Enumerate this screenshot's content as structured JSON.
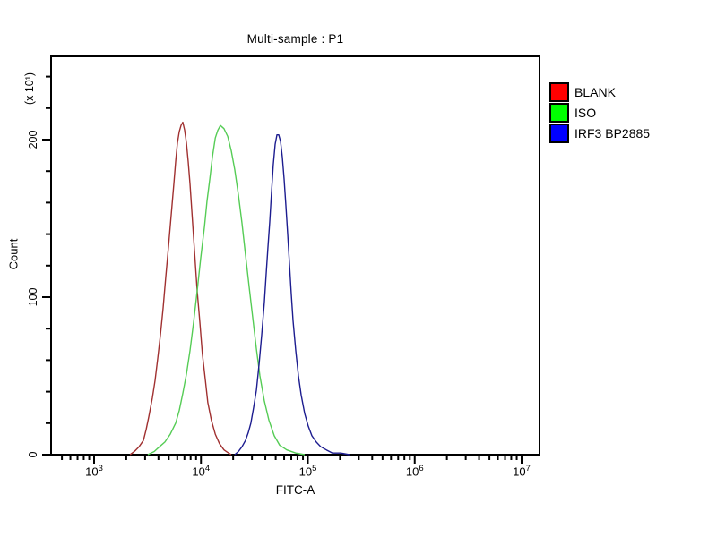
{
  "title": "Multi-sample : P1",
  "legend": {
    "items": [
      {
        "label": "BLANK",
        "color": "#ff0000"
      },
      {
        "label": "ISO",
        "color": "#00ff00"
      },
      {
        "label": "IRF3 BP2885",
        "color": "#0000ff"
      }
    ]
  },
  "axes": {
    "x": {
      "label": "FITC-A",
      "scale": "log",
      "base": "10",
      "tick_exponents": [
        3,
        4,
        5,
        6,
        7
      ]
    },
    "y": {
      "label": "Count",
      "multiplier_label": "(x 10¹)",
      "tick_values": [
        0,
        100,
        200
      ],
      "minor_step": 20,
      "minor_max": 240
    }
  },
  "chart_data": {
    "type": "line",
    "title": "Multi-sample : P1",
    "xlabel": "FITC-A",
    "ylabel": "Count",
    "y_unit": "x 10^1",
    "x_scale": "log",
    "xlim": [
      400,
      15000000
    ],
    "ylim": [
      0,
      253
    ],
    "grid": false,
    "legend_position": "right-outside",
    "series": [
      {
        "name": "BLANK",
        "color": "#a03030",
        "legend_color": "#ff0000",
        "points": [
          [
            2170,
            0
          ],
          [
            2380,
            2
          ],
          [
            2630,
            5
          ],
          [
            2890,
            9
          ],
          [
            3070,
            16
          ],
          [
            3250,
            24
          ],
          [
            3510,
            36
          ],
          [
            3720,
            47
          ],
          [
            3940,
            61
          ],
          [
            4170,
            76
          ],
          [
            4420,
            93
          ],
          [
            4690,
            113
          ],
          [
            4970,
            132
          ],
          [
            5260,
            152
          ],
          [
            5580,
            172
          ],
          [
            5800,
            186
          ],
          [
            6020,
            198
          ],
          [
            6260,
            205
          ],
          [
            6510,
            209
          ],
          [
            6760,
            211
          ],
          [
            7030,
            206
          ],
          [
            7310,
            198
          ],
          [
            7590,
            186
          ],
          [
            7890,
            172
          ],
          [
            8200,
            155
          ],
          [
            8520,
            138
          ],
          [
            8860,
            121
          ],
          [
            9210,
            104
          ],
          [
            9760,
            84
          ],
          [
            10300,
            64
          ],
          [
            11000,
            47
          ],
          [
            11600,
            33
          ],
          [
            12500,
            22
          ],
          [
            13600,
            13
          ],
          [
            14900,
            7
          ],
          [
            16400,
            3
          ],
          [
            18100,
            1
          ],
          [
            19200,
            0
          ]
        ]
      },
      {
        "name": "ISO",
        "color": "#55cc55",
        "legend_color": "#00ff00",
        "points": [
          [
            3180,
            0
          ],
          [
            3650,
            2
          ],
          [
            4090,
            5
          ],
          [
            4600,
            8
          ],
          [
            5160,
            13
          ],
          [
            5800,
            20
          ],
          [
            6260,
            28
          ],
          [
            6760,
            39
          ],
          [
            7310,
            51
          ],
          [
            7890,
            66
          ],
          [
            8520,
            84
          ],
          [
            9210,
            104
          ],
          [
            9950,
            125
          ],
          [
            10800,
            145
          ],
          [
            11400,
            161
          ],
          [
            12100,
            175
          ],
          [
            12800,
            189
          ],
          [
            13600,
            201
          ],
          [
            14400,
            206
          ],
          [
            15200,
            209
          ],
          [
            16400,
            207
          ],
          [
            17800,
            202
          ],
          [
            19200,
            193
          ],
          [
            20700,
            181
          ],
          [
            22400,
            165
          ],
          [
            24200,
            147
          ],
          [
            26100,
            127
          ],
          [
            28200,
            107
          ],
          [
            30500,
            87
          ],
          [
            33000,
            67
          ],
          [
            35600,
            50
          ],
          [
            39200,
            34
          ],
          [
            43200,
            22
          ],
          [
            48500,
            12
          ],
          [
            54400,
            6
          ],
          [
            63500,
            3
          ],
          [
            77100,
            1
          ],
          [
            93500,
            0
          ]
        ]
      },
      {
        "name": "IRF3 BP2885",
        "color": "#1c1c8f",
        "legend_color": "#0000ff",
        "points": [
          [
            20700,
            0
          ],
          [
            22400,
            2
          ],
          [
            24200,
            5
          ],
          [
            26100,
            9
          ],
          [
            27700,
            14
          ],
          [
            29300,
            20
          ],
          [
            31100,
            30
          ],
          [
            33000,
            41
          ],
          [
            34900,
            57
          ],
          [
            37000,
            76
          ],
          [
            39200,
            97
          ],
          [
            40700,
            114
          ],
          [
            42300,
            131
          ],
          [
            44000,
            148
          ],
          [
            45700,
            166
          ],
          [
            47500,
            184
          ],
          [
            49400,
            197
          ],
          [
            51400,
            203
          ],
          [
            53400,
            203
          ],
          [
            55500,
            199
          ],
          [
            57700,
            189
          ],
          [
            59900,
            175
          ],
          [
            62300,
            158
          ],
          [
            64800,
            140
          ],
          [
            67300,
            121
          ],
          [
            70000,
            102
          ],
          [
            72700,
            85
          ],
          [
            77100,
            66
          ],
          [
            81600,
            50
          ],
          [
            86500,
            38
          ],
          [
            93500,
            26
          ],
          [
            101000,
            18
          ],
          [
            109000,
            12
          ],
          [
            120000,
            8
          ],
          [
            132000,
            5
          ],
          [
            149000,
            3
          ],
          [
            170000,
            1
          ],
          [
            202000,
            1
          ],
          [
            245000,
            0
          ]
        ]
      }
    ]
  }
}
